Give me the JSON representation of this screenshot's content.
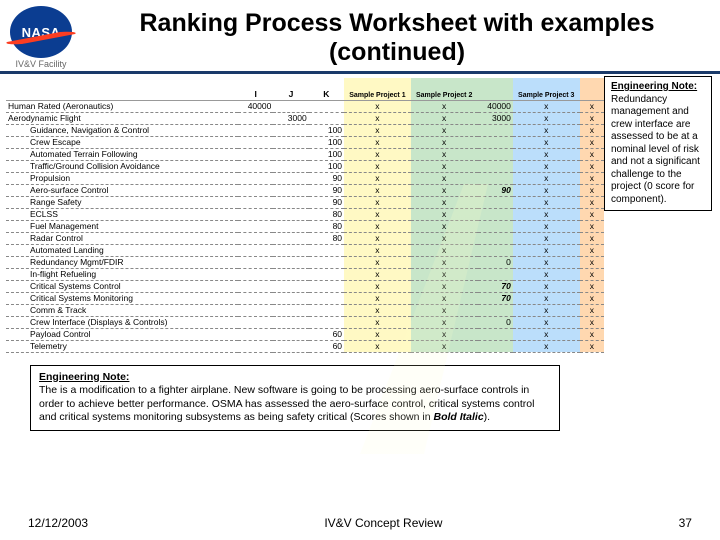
{
  "logo": {
    "text": "NASA",
    "facility": "IV&V Facility"
  },
  "title": "Ranking Process Worksheet with examples (continued)",
  "columns": {
    "i": "I",
    "j": "J",
    "k": "K",
    "s1": "Sample Project 1",
    "s2": "Sample Project 2",
    "s3": "Sample Project 3"
  },
  "groupRow": {
    "label": "Human Rated (Aeronautics)",
    "i": "40000",
    "j": "",
    "s2": "40000"
  },
  "subGroup": {
    "label": "Aerodynamic Flight",
    "j": "3000",
    "s2": "3000"
  },
  "rows": [
    {
      "label": "Guidance, Navigation & Control",
      "val": "100",
      "s2": ""
    },
    {
      "label": "Crew Escape",
      "val": "100",
      "s2": ""
    },
    {
      "label": "Automated Terrain Following",
      "val": "100",
      "s2": ""
    },
    {
      "label": "Traffic/Ground Collision Avoidance",
      "val": "100",
      "s2": ""
    },
    {
      "label": "Propulsion",
      "val": "90",
      "s2": ""
    },
    {
      "label": "Aero-surface Control",
      "val": "90",
      "s2": "90",
      "em": true
    },
    {
      "label": "Range Safety",
      "val": "90",
      "s2": ""
    },
    {
      "label": "ECLSS",
      "val": "80",
      "s2": ""
    },
    {
      "label": "Fuel Management",
      "val": "80",
      "s2": ""
    },
    {
      "label": "Radar Control",
      "val": "80",
      "s2": ""
    },
    {
      "label": "Automated Landing",
      "val": "",
      "s2": ""
    },
    {
      "label": "Redundancy Mgmt/FDIR",
      "val": "",
      "s2": "0"
    },
    {
      "label": "In-flight Refueling",
      "val": "",
      "s2": ""
    },
    {
      "label": "Critical Systems Control",
      "val": "",
      "s2": "70",
      "em": true
    },
    {
      "label": "Critical Systems Monitoring",
      "val": "",
      "s2": "70",
      "em": true
    },
    {
      "label": "Comm & Track",
      "val": "",
      "s2": ""
    },
    {
      "label": "Crew Interface (Displays & Controls)",
      "val": "",
      "s2": "0"
    },
    {
      "label": "Payload Control",
      "val": "60",
      "s2": ""
    },
    {
      "label": "Telemetry",
      "val": "60",
      "s2": ""
    }
  ],
  "notes": {
    "right": {
      "title": "Engineering Note:",
      "body": "Redundancy management and crew interface are assessed to be at a nominal level of risk and not a significant challenge to the project (0 score for component)."
    },
    "bottom": {
      "title": "Engineering Note:",
      "body1": "The is a modification to a fighter airplane.  New software is going to be processing aero-surface controls in order to achieve better performance. OSMA has assessed the aero-surface control, critical systems control and critical systems monitoring subsystems as being safety critical (Scores shown in ",
      "bold": "Bold Italic",
      "body2": ")."
    }
  },
  "footer": {
    "date": "12/12/2003",
    "center": "IV&V Concept Review",
    "page": "37"
  }
}
